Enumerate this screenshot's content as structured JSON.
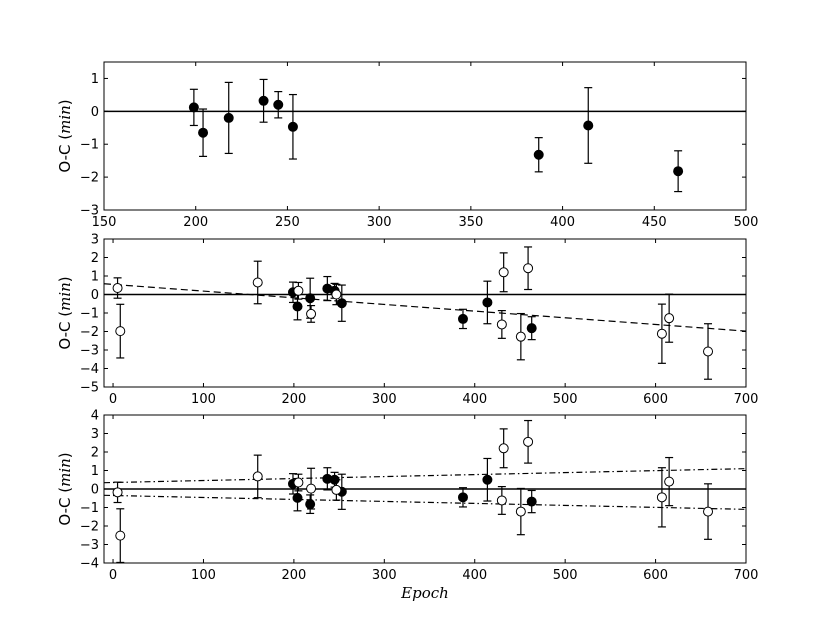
{
  "chart_data": [
    {
      "type": "scatter",
      "xlabel": "",
      "ylabel_prefix": "O-C (",
      "ylabel_unit": "min",
      "ylabel_suffix": ")",
      "xlim": [
        150,
        500
      ],
      "ylim": [
        -3,
        1.5
      ],
      "xticks": [
        150,
        200,
        250,
        300,
        350,
        400,
        450,
        500
      ],
      "yticks": [
        -3,
        -2,
        -1,
        0,
        1
      ],
      "hlines": [
        0
      ],
      "fit_lines": [],
      "series": [
        {
          "marker": "filled",
          "points": [
            {
              "x": 199,
              "y": 0.12,
              "err": 0.55
            },
            {
              "x": 204,
              "y": -0.65,
              "err": 0.72
            },
            {
              "x": 218,
              "y": -0.2,
              "err": 1.08
            },
            {
              "x": 237,
              "y": 0.32,
              "err": 0.65
            },
            {
              "x": 245,
              "y": 0.2,
              "err": 0.4
            },
            {
              "x": 253,
              "y": -0.47,
              "err": 0.98
            },
            {
              "x": 387,
              "y": -1.32,
              "err": 0.52
            },
            {
              "x": 414,
              "y": -0.43,
              "err": 1.15
            },
            {
              "x": 463,
              "y": -1.82,
              "err": 0.62
            }
          ]
        }
      ]
    },
    {
      "type": "scatter",
      "xlabel": "",
      "ylabel_prefix": "O-C (",
      "ylabel_unit": "min",
      "ylabel_suffix": ")",
      "xlim": [
        -10,
        700
      ],
      "ylim": [
        -5,
        3
      ],
      "xticks": [
        0,
        100,
        200,
        300,
        400,
        500,
        600,
        700
      ],
      "yticks": [
        -5,
        -4,
        -3,
        -2,
        -1,
        0,
        1,
        2,
        3
      ],
      "hlines": [
        0
      ],
      "fit_lines": [
        {
          "style": "dashed",
          "x": [
            -10,
            700
          ],
          "y": [
            0.58,
            -1.98
          ]
        }
      ],
      "series": [
        {
          "marker": "filled",
          "points": [
            {
              "x": 199,
              "y": 0.12,
              "err": 0.55
            },
            {
              "x": 204,
              "y": -0.65,
              "err": 0.72
            },
            {
              "x": 218,
              "y": -0.2,
              "err": 1.08
            },
            {
              "x": 237,
              "y": 0.32,
              "err": 0.65
            },
            {
              "x": 245,
              "y": 0.2,
              "err": 0.4
            },
            {
              "x": 253,
              "y": -0.47,
              "err": 0.98
            },
            {
              "x": 387,
              "y": -1.32,
              "err": 0.52
            },
            {
              "x": 414,
              "y": -0.43,
              "err": 1.15
            },
            {
              "x": 463,
              "y": -1.82,
              "err": 0.62
            }
          ]
        },
        {
          "marker": "open",
          "points": [
            {
              "x": 5,
              "y": 0.35,
              "err": 0.55
            },
            {
              "x": 8,
              "y": -1.98,
              "err": 1.45
            },
            {
              "x": 160,
              "y": 0.65,
              "err": 1.15
            },
            {
              "x": 205,
              "y": 0.2,
              "err": 0.45
            },
            {
              "x": 219,
              "y": -1.05,
              "err": 0.45
            },
            {
              "x": 247,
              "y": 0.0,
              "err": 0.55
            },
            {
              "x": 430,
              "y": -1.62,
              "err": 0.75
            },
            {
              "x": 432,
              "y": 1.2,
              "err": 1.05
            },
            {
              "x": 451,
              "y": -2.28,
              "err": 1.25
            },
            {
              "x": 459,
              "y": 1.42,
              "err": 1.15
            },
            {
              "x": 607,
              "y": -2.12,
              "err": 1.6
            },
            {
              "x": 615,
              "y": -1.28,
              "err": 1.3
            },
            {
              "x": 658,
              "y": -3.08,
              "err": 1.5
            }
          ]
        }
      ]
    },
    {
      "type": "scatter",
      "xlabel": "Epoch",
      "ylabel_prefix": "O-C (",
      "ylabel_unit": "min",
      "ylabel_suffix": ")",
      "xlim": [
        -10,
        700
      ],
      "ylim": [
        -4,
        4
      ],
      "xticks": [
        0,
        100,
        200,
        300,
        400,
        500,
        600,
        700
      ],
      "yticks": [
        -4,
        -3,
        -2,
        -1,
        0,
        1,
        2,
        3,
        4
      ],
      "hlines": [
        0
      ],
      "fit_lines": [
        {
          "style": "dashdot",
          "x": [
            -10,
            700
          ],
          "y": [
            0.34,
            1.1
          ]
        },
        {
          "style": "dashdot",
          "x": [
            -10,
            700
          ],
          "y": [
            -0.34,
            -1.1
          ]
        }
      ],
      "series": [
        {
          "marker": "filled",
          "points": [
            {
              "x": 199,
              "y": 0.28,
              "err": 0.55
            },
            {
              "x": 204,
              "y": -0.48,
              "err": 0.7
            },
            {
              "x": 218,
              "y": -0.82,
              "err": 0.5
            },
            {
              "x": 237,
              "y": 0.55,
              "err": 0.6
            },
            {
              "x": 245,
              "y": 0.5,
              "err": 0.4
            },
            {
              "x": 253,
              "y": -0.15,
              "err": 0.95
            },
            {
              "x": 387,
              "y": -0.45,
              "err": 0.52
            },
            {
              "x": 414,
              "y": 0.5,
              "err": 1.15
            },
            {
              "x": 463,
              "y": -0.68,
              "err": 0.6
            }
          ]
        },
        {
          "marker": "open",
          "points": [
            {
              "x": 5,
              "y": -0.18,
              "err": 0.55
            },
            {
              "x": 8,
              "y": -2.52,
              "err": 1.45
            },
            {
              "x": 160,
              "y": 0.68,
              "err": 1.15
            },
            {
              "x": 205,
              "y": 0.35,
              "err": 0.45
            },
            {
              "x": 219,
              "y": 0.02,
              "err": 1.1
            },
            {
              "x": 247,
              "y": -0.05,
              "err": 0.55
            },
            {
              "x": 430,
              "y": -0.62,
              "err": 0.75
            },
            {
              "x": 432,
              "y": 2.2,
              "err": 1.05
            },
            {
              "x": 451,
              "y": -1.22,
              "err": 1.25
            },
            {
              "x": 459,
              "y": 2.55,
              "err": 1.15
            },
            {
              "x": 607,
              "y": -0.45,
              "err": 1.6
            },
            {
              "x": 615,
              "y": 0.4,
              "err": 1.3
            },
            {
              "x": 658,
              "y": -1.22,
              "err": 1.5
            }
          ]
        }
      ]
    }
  ]
}
